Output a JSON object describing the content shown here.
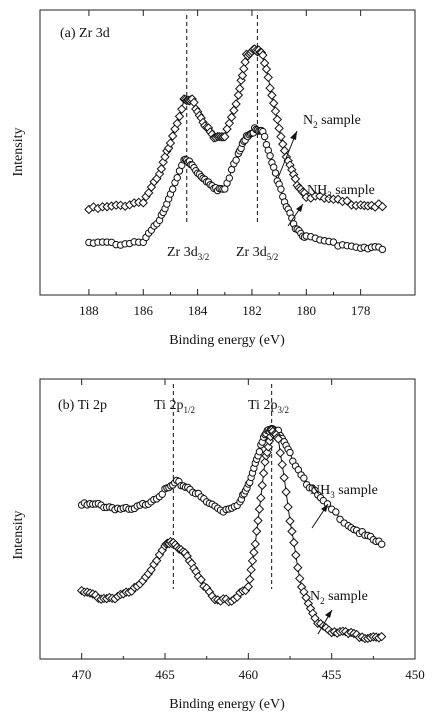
{
  "chart_data": [
    {
      "type": "line",
      "title": "(a)  Zr 3d",
      "xlabel": "Binding energy (eV)",
      "ylabel": "Intensity",
      "xlim": [
        189.8,
        176.0
      ],
      "x_reversed": true,
      "ticks": [
        188,
        186,
        184,
        182,
        180,
        178
      ],
      "grid": false,
      "series": [
        {
          "name": "N2 sample",
          "marker": "diamond",
          "points": [
            [
              188.0,
              0.3
            ],
            [
              187.0,
              0.31
            ],
            [
              186.0,
              0.33
            ],
            [
              185.4,
              0.42
            ],
            [
              185.0,
              0.54
            ],
            [
              184.5,
              0.68
            ],
            [
              184.2,
              0.68
            ],
            [
              183.8,
              0.61
            ],
            [
              183.4,
              0.55
            ],
            [
              183.0,
              0.56
            ],
            [
              182.5,
              0.7
            ],
            [
              182.2,
              0.84
            ],
            [
              181.9,
              0.87
            ],
            [
              181.6,
              0.84
            ],
            [
              181.2,
              0.68
            ],
            [
              180.8,
              0.5
            ],
            [
              180.4,
              0.4
            ],
            [
              180.0,
              0.35
            ],
            [
              179.0,
              0.33
            ],
            [
              178.0,
              0.32
            ],
            [
              177.2,
              0.31
            ]
          ]
        },
        {
          "name": "NH3 sample",
          "marker": "circle",
          "points": [
            [
              188.0,
              0.18
            ],
            [
              187.0,
              0.18
            ],
            [
              186.0,
              0.19
            ],
            [
              185.4,
              0.26
            ],
            [
              185.0,
              0.36
            ],
            [
              184.5,
              0.47
            ],
            [
              184.2,
              0.46
            ],
            [
              183.8,
              0.41
            ],
            [
              183.4,
              0.37
            ],
            [
              183.0,
              0.38
            ],
            [
              182.5,
              0.49
            ],
            [
              182.2,
              0.56
            ],
            [
              181.9,
              0.58
            ],
            [
              181.6,
              0.57
            ],
            [
              181.2,
              0.45
            ],
            [
              180.8,
              0.32
            ],
            [
              180.4,
              0.24
            ],
            [
              180.0,
              0.2
            ],
            [
              179.0,
              0.18
            ],
            [
              178.0,
              0.17
            ],
            [
              177.2,
              0.16
            ]
          ]
        }
      ],
      "dashed_lines_x": [
        184.4,
        181.8
      ],
      "annotations": [
        {
          "label": "Zr 3d",
          "sub": "3/2"
        },
        {
          "label": "Zr 3d",
          "sub": "5/2"
        }
      ],
      "legend_labels": [
        {
          "base": "N",
          "sub": "2",
          "rest": " sample"
        },
        {
          "base": "NH",
          "sub": "3",
          "rest": " sample"
        }
      ]
    },
    {
      "type": "line",
      "title": "(b)  Ti 2p",
      "xlabel": "Binding energy (eV)",
      "ylabel": "Intensity",
      "xlim": [
        472.5,
        450.0
      ],
      "x_reversed": true,
      "ticks": [
        470,
        465,
        460,
        455,
        450
      ],
      "grid": false,
      "series": [
        {
          "name": "NH3 sample",
          "marker": "circle",
          "points": [
            [
              470.0,
              0.55
            ],
            [
              469.0,
              0.55
            ],
            [
              468.0,
              0.54
            ],
            [
              467.0,
              0.53
            ],
            [
              466.0,
              0.56
            ],
            [
              465.0,
              0.6
            ],
            [
              464.3,
              0.63
            ],
            [
              463.5,
              0.61
            ],
            [
              462.5,
              0.56
            ],
            [
              461.5,
              0.53
            ],
            [
              460.5,
              0.56
            ],
            [
              460.0,
              0.62
            ],
            [
              459.5,
              0.72
            ],
            [
              459.0,
              0.8
            ],
            [
              458.6,
              0.83
            ],
            [
              458.2,
              0.81
            ],
            [
              457.5,
              0.73
            ],
            [
              456.5,
              0.63
            ],
            [
              455.5,
              0.56
            ],
            [
              454.0,
              0.48
            ],
            [
              453.0,
              0.44
            ],
            [
              452.0,
              0.41
            ]
          ]
        },
        {
          "name": "N2 sample",
          "marker": "diamond",
          "points": [
            [
              470.0,
              0.24
            ],
            [
              469.0,
              0.22
            ],
            [
              468.0,
              0.22
            ],
            [
              467.0,
              0.24
            ],
            [
              466.0,
              0.31
            ],
            [
              465.0,
              0.4
            ],
            [
              464.5,
              0.42
            ],
            [
              463.8,
              0.38
            ],
            [
              463.0,
              0.29
            ],
            [
              462.0,
              0.22
            ],
            [
              461.0,
              0.2
            ],
            [
              460.0,
              0.26
            ],
            [
              459.5,
              0.45
            ],
            [
              459.0,
              0.7
            ],
            [
              458.6,
              0.82
            ],
            [
              458.2,
              0.78
            ],
            [
              457.5,
              0.5
            ],
            [
              456.8,
              0.25
            ],
            [
              456.0,
              0.14
            ],
            [
              455.0,
              0.1
            ],
            [
              454.0,
              0.09
            ],
            [
              453.0,
              0.08
            ],
            [
              452.0,
              0.08
            ]
          ]
        }
      ],
      "dashed_lines_x": [
        464.5,
        458.6
      ],
      "annotations": [
        {
          "label": "Ti 2p",
          "sub": "1/2"
        },
        {
          "label": "Ti 2p",
          "sub": "3/2"
        }
      ],
      "legend_labels": [
        {
          "base": "NH",
          "sub": "3",
          "rest": " sample"
        },
        {
          "base": "N",
          "sub": "2",
          "rest": " sample"
        }
      ]
    }
  ]
}
